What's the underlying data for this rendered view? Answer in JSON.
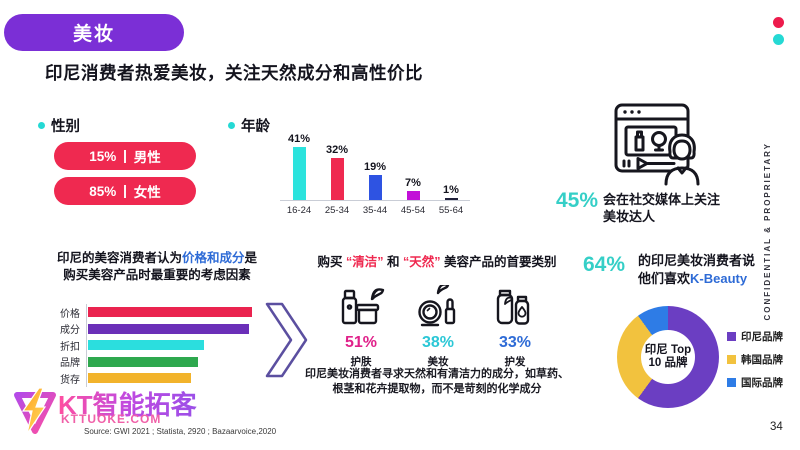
{
  "meta": {
    "page_number": "34",
    "confidential_label": "CONFIDENTIAL & PROPRIETARY",
    "source": "Source: GWI 2021 ; Statista, 2920 ; Bazaarvoice,2020"
  },
  "header": {
    "badge_label": "美妆",
    "title": "印尼消费者热爱美妆，关注天然成分和高性价比",
    "accent_dot_top_color": "#ED1B4C",
    "accent_dot_bottom_color": "#25D9D4"
  },
  "gender": {
    "label": "性别",
    "pill_color": "#EF2950",
    "items": [
      {
        "value": "15%",
        "label": "男性"
      },
      {
        "value": "85%",
        "label": "女性"
      }
    ]
  },
  "social_stat": {
    "value": "45%",
    "value_color": "#35CFC7",
    "line1": "会在社交媒体上关注",
    "line2": "美妆达人",
    "icon": "beauty-vlogger-video-icon"
  },
  "kbeauty_stat": {
    "value": "64%",
    "value_color": "#35CFC7",
    "line1": "的印尼美妆消费者说",
    "line2_prefix": "他们喜欢",
    "line2_highlight": "K-Beauty",
    "highlight_color": "#2E6BD6"
  },
  "considerations": {
    "text_prefix": "印尼的美容消费者认为",
    "text_highlight": "价格和成分",
    "text_highlight_color": "#2E6BD6",
    "text_suffix": "是",
    "text_line2": "购买美容产品时最重要的考虑因素"
  },
  "categories": {
    "heading_prefix": "购买",
    "heading_q1": "“清洁”",
    "heading_mid": "和",
    "heading_q2": "“天然”",
    "heading_suffix": "美容产品的首要类别",
    "heading_quote_color": "#EF2950",
    "items": [
      {
        "pct": "51%",
        "label": "护肤",
        "color": "#E0218A",
        "icon": "skincare-icon"
      },
      {
        "pct": "38%",
        "label": "美妆",
        "color": "#2BC7D6",
        "icon": "makeup-icon"
      },
      {
        "pct": "33%",
        "label": "护发",
        "color": "#2E6BD6",
        "icon": "haircare-icon"
      }
    ],
    "note_line1": "印尼美妆消费者寻求天然和有清洁力的成分，如草药、",
    "note_line2": "根茎和花卉提取物，而不是苛刻的化学成分"
  },
  "watermark": {
    "brand": "KT智能拓客",
    "url": "KTTUOKE.COM",
    "icon": "lightning-triangle-logo"
  },
  "chart_data": [
    {
      "type": "bar",
      "title": "年龄",
      "categories": [
        "16-24",
        "25-34",
        "35-44",
        "45-54",
        "55-64"
      ],
      "values": [
        41,
        32,
        19,
        7,
        1
      ],
      "unit": "%",
      "colors": [
        "#2BE3DD",
        "#EF2950",
        "#2E53E2",
        "#C210D8",
        "#20203A"
      ],
      "ylim": [
        0,
        45
      ],
      "grid": false,
      "data_labels": true
    },
    {
      "type": "bar",
      "orientation": "horizontal",
      "title": "购买美容产品时最重要的考虑因素",
      "categories": [
        "价格",
        "成分",
        "折扣",
        "品牌",
        "货存"
      ],
      "values": [
        100,
        98,
        71,
        67,
        63
      ],
      "values_note": "estimated relative bar lengths; chart shows no numeric labels",
      "colors": [
        "#EA234F",
        "#6B2FB8",
        "#2BDEDE",
        "#2EA84E",
        "#F2B32B"
      ],
      "data_labels": false
    },
    {
      "type": "pie",
      "subtype": "donut",
      "center_line1": "印尼 Top",
      "center_line2": "10 品牌",
      "segments": [
        {
          "label": "印尼品牌",
          "value": 60,
          "color": "#6B3EC2"
        },
        {
          "label": "韩国品牌",
          "value": 30,
          "color": "#F2C23E"
        },
        {
          "label": "国际品牌",
          "value": 10,
          "color": "#2E7CE6"
        }
      ],
      "values_note": "estimated from arc angles; chart shows no numeric labels",
      "legend_position": "right"
    }
  ]
}
